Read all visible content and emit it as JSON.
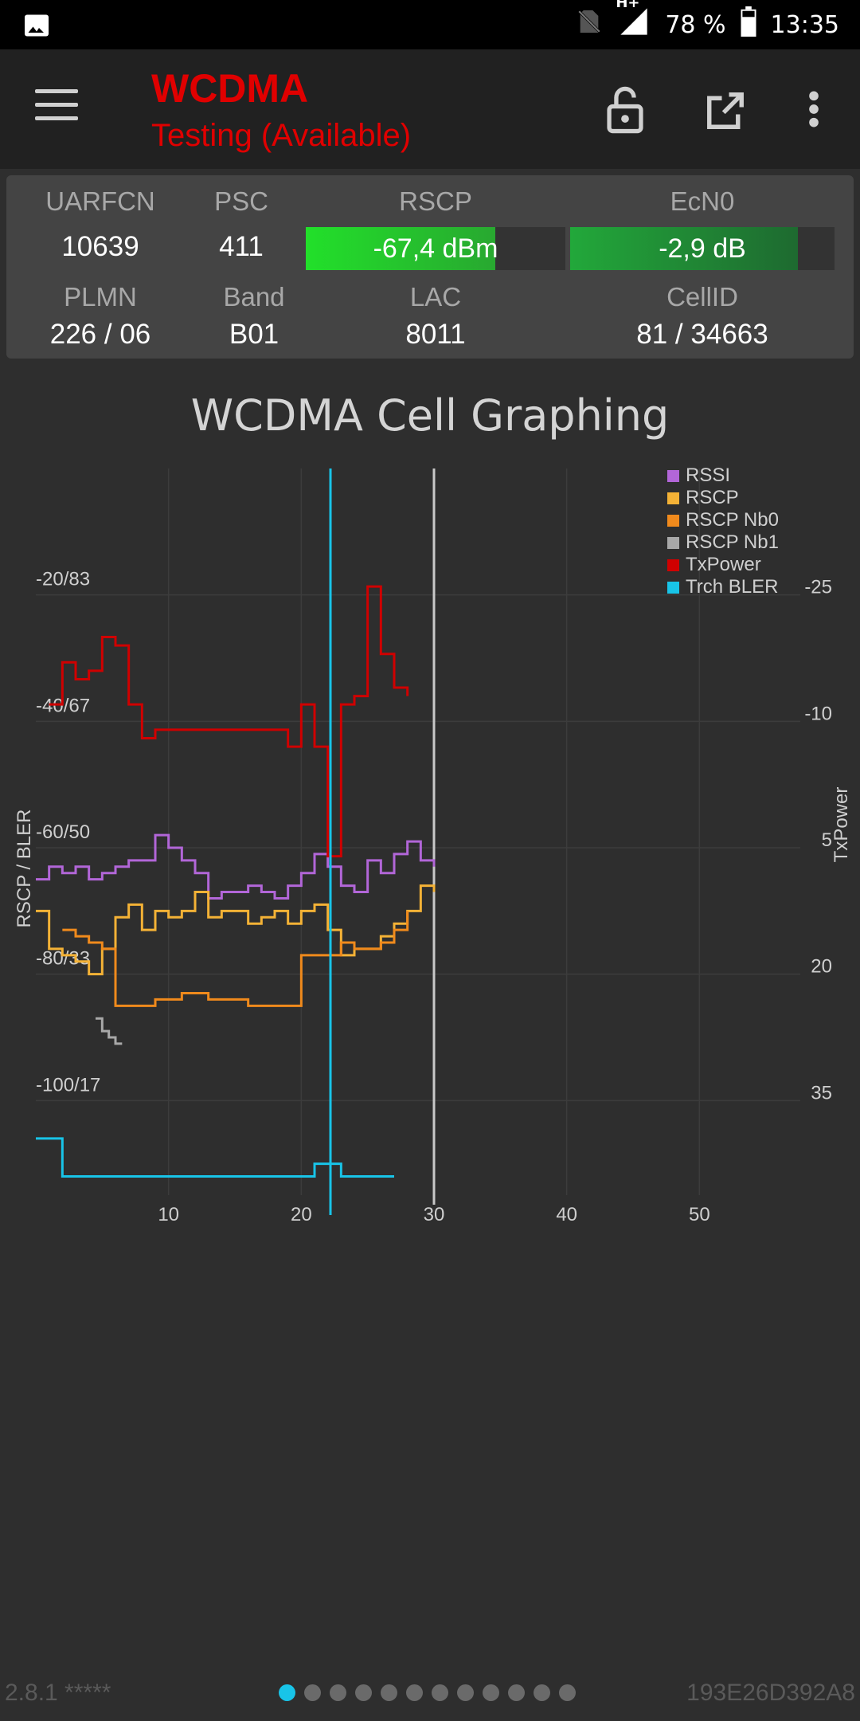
{
  "status_bar": {
    "battery_text": "78 %",
    "time": "13:35",
    "network": "H+",
    "icons": [
      "image-icon",
      "no-sim-icon",
      "signal-icon",
      "battery-icon"
    ]
  },
  "app_bar": {
    "title": "WCDMA",
    "subtitle": "Testing (Available)",
    "title_color": "#e00000",
    "icons": [
      "menu-icon",
      "lock-open-icon",
      "open-external-icon",
      "more-vert-icon"
    ]
  },
  "cell_info": {
    "uarfcn_label": "UARFCN",
    "uarfcn": "10639",
    "psc_label": "PSC",
    "psc": "411",
    "rscp_label": "RSCP",
    "rscp": "-67,4 dBm",
    "rscp_fill": 0.73,
    "ecn0_label": "EcN0",
    "ecn0": "-2,9 dB",
    "ecn0_fill": 0.86,
    "plmn_label": "PLMN",
    "plmn": "226 / 06",
    "band_label": "Band",
    "band": "B01",
    "lac_label": "LAC",
    "lac": "8011",
    "cellid_label": "CellID",
    "cellid": "81 / 34663"
  },
  "chart_title": "WCDMA Cell Graphing",
  "chart_data": {
    "type": "line",
    "ylabel": "RSCP / BLER",
    "y2label": "TxPower",
    "x_ticks": [
      "10",
      "20",
      "30",
      "40",
      "50"
    ],
    "y_ticks": [
      "-20/83",
      "-40/67",
      "-60/50",
      "-80/33",
      "-100/17"
    ],
    "y2_ticks": [
      "-25",
      "-10",
      "5",
      "20",
      "35"
    ],
    "xlim": [
      0,
      60
    ],
    "ylim": [
      -120,
      0
    ],
    "y2lim": [
      50,
      -40
    ],
    "grid": true,
    "legend_position": "top-right",
    "cursor_x": 30,
    "series": [
      {
        "name": "RSSI",
        "color": "#b266d8",
        "axis": "left",
        "x": [
          0,
          1,
          2,
          3,
          4,
          5,
          6,
          7,
          8,
          9,
          10,
          11,
          12,
          13,
          14,
          15,
          16,
          17,
          18,
          19,
          20,
          21,
          22,
          23,
          24,
          25,
          26,
          27,
          28,
          29,
          30
        ],
        "y": [
          -65,
          -63,
          -64,
          -63,
          -65,
          -64,
          -63,
          -62,
          -62,
          -58,
          -60,
          -62,
          -64,
          -68,
          -67,
          -67,
          -66,
          -67,
          -68,
          -66,
          -64,
          -61,
          -63,
          -66,
          -67,
          -62,
          -64,
          -61,
          -59,
          -62,
          -63
        ]
      },
      {
        "name": "RSCP",
        "color": "#f4b236",
        "axis": "left",
        "x": [
          0,
          1,
          2,
          3,
          4,
          5,
          6,
          7,
          8,
          9,
          10,
          11,
          12,
          13,
          14,
          15,
          16,
          17,
          18,
          19,
          20,
          21,
          22,
          23,
          24,
          25,
          26,
          27,
          28,
          29,
          30
        ],
        "y": [
          -70,
          -76,
          -77,
          -78,
          -80,
          -76,
          -71,
          -69,
          -73,
          -70,
          -71,
          -70,
          -67,
          -71,
          -70,
          -70,
          -72,
          -71,
          -70,
          -72,
          -70,
          -69,
          -73,
          -77,
          -76,
          -76,
          -74,
          -72,
          -70,
          -66,
          -67
        ]
      },
      {
        "name": "RSCP Nb0",
        "color": "#f08a1c",
        "axis": "left",
        "x": [
          0,
          1,
          2,
          3,
          4,
          5,
          6,
          7,
          8,
          9,
          10,
          11,
          12,
          13,
          14,
          15,
          16,
          17,
          18,
          19,
          20,
          21,
          22,
          23,
          24,
          25,
          26,
          27,
          28
        ],
        "y": [
          null,
          null,
          -73,
          -74,
          -75,
          -76,
          -85,
          -85,
          -85,
          -84,
          -84,
          -83,
          -83,
          -84,
          -84,
          -84,
          -85,
          -85,
          -85,
          -85,
          -77,
          -77,
          -77,
          -75,
          -76,
          -76,
          -75,
          -73,
          -70
        ]
      },
      {
        "name": "RSCP Nb1",
        "color": "#a8a8a8",
        "axis": "left",
        "x": [
          4.5,
          5,
          5.5,
          6,
          6.5
        ],
        "y": [
          -87,
          -89,
          -90,
          -91,
          -91
        ]
      },
      {
        "name": "TxPower",
        "color": "#d00000",
        "axis": "right",
        "x": [
          1,
          2,
          3,
          4,
          5,
          6,
          7,
          8,
          9,
          19,
          20,
          21,
          22,
          23,
          24,
          25,
          26,
          27,
          28
        ],
        "y": [
          -12,
          -17,
          -15,
          -16,
          -20,
          -19,
          -12,
          -8,
          -9,
          -7,
          -12,
          -7,
          6,
          -12,
          -13,
          -26,
          -18,
          -14,
          -13
        ]
      },
      {
        "name": "Trch BLER",
        "color": "#18c4e8",
        "axis": "left",
        "x": [
          0,
          1,
          2,
          3,
          4,
          5,
          6,
          7,
          8,
          9,
          10,
          11,
          12,
          13,
          14,
          15,
          16,
          21,
          22,
          23,
          24,
          25,
          26,
          27
        ],
        "y": [
          -106,
          -106,
          -112,
          -112,
          -112,
          -112,
          -112,
          -112,
          -112,
          -112,
          -112,
          -112,
          -112,
          -112,
          -112,
          -112,
          -112,
          -110,
          -110,
          -112,
          -112,
          -112,
          -112,
          -112
        ]
      }
    ]
  },
  "footer": {
    "version": "2.8.1 *****",
    "device_id": "193E26D392A8",
    "page_count": 12,
    "active_page": 0
  }
}
